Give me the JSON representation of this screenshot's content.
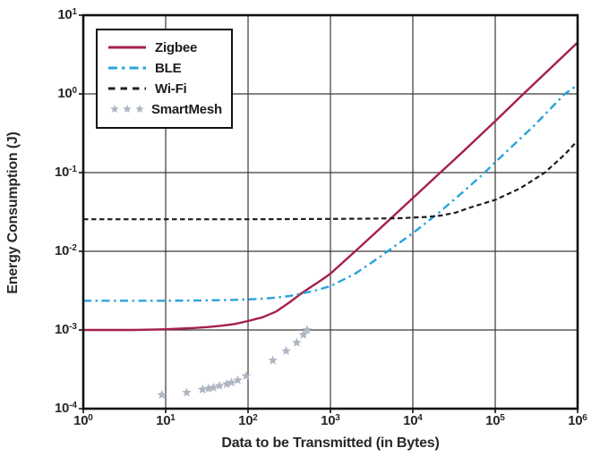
{
  "chart_data": {
    "type": "line",
    "title": "",
    "xlabel": "Data to be Transmitted (in Bytes)",
    "ylabel": "Energy Consumption (J)",
    "x_scale": "log",
    "y_scale": "log",
    "xlim_exponents": [
      0,
      6
    ],
    "ylim_exponents": [
      -4,
      1
    ],
    "x_tick_exponents": [
      0,
      1,
      2,
      3,
      4,
      5,
      6
    ],
    "y_tick_exponents": [
      1,
      0,
      -1,
      -2,
      -3,
      -4
    ],
    "grid": true,
    "legend_position": "top-left",
    "series": [
      {
        "name": "Zigbee",
        "style": "solid",
        "color": "#A62048",
        "width": 2.4,
        "x": [
          1,
          2,
          4,
          7,
          10,
          15,
          22,
          33,
          47,
          68,
          100,
          150,
          220,
          320,
          440,
          600,
          800,
          1000,
          2000,
          4000,
          7000,
          10000,
          20000,
          40000,
          100000,
          220000,
          1000000
        ],
        "y": [
          0.001,
          0.001,
          0.001,
          0.00101,
          0.00102,
          0.00104,
          0.00106,
          0.00109,
          0.00113,
          0.00119,
          0.0013,
          0.00145,
          0.00172,
          0.00225,
          0.0029,
          0.0036,
          0.0044,
          0.0052,
          0.01,
          0.0195,
          0.0335,
          0.0475,
          0.093,
          0.182,
          0.45,
          1.0,
          4.5
        ]
      },
      {
        "name": "BLE",
        "style": "dashdot",
        "color": "#29A3DC",
        "width": 2.4,
        "x": [
          1,
          3,
          10,
          30,
          60,
          100,
          150,
          220,
          320,
          440,
          600,
          1000,
          2000,
          4000,
          7000,
          10000,
          20000,
          40000,
          70000,
          100000,
          300000,
          700000,
          1000000
        ],
        "y": [
          0.00235,
          0.00235,
          0.00235,
          0.00238,
          0.0024,
          0.00245,
          0.0025,
          0.00258,
          0.0027,
          0.0029,
          0.0031,
          0.0036,
          0.0052,
          0.0085,
          0.013,
          0.017,
          0.03,
          0.056,
          0.094,
          0.135,
          0.4,
          1.0,
          1.3
        ]
      },
      {
        "name": "Wi-Fi",
        "style": "dashed",
        "color": "#1E1E1E",
        "width": 2.2,
        "x": [
          1,
          10,
          100,
          1000,
          3000,
          7000,
          10000,
          15000,
          22000,
          33000,
          50000,
          100000,
          200000,
          400000,
          700000,
          1000000
        ],
        "y": [
          0.0255,
          0.0255,
          0.0255,
          0.0258,
          0.026,
          0.0263,
          0.0268,
          0.0273,
          0.0285,
          0.031,
          0.036,
          0.045,
          0.063,
          0.1,
          0.17,
          0.255
        ]
      },
      {
        "name": "SmartMesh",
        "style": "stars",
        "color": "#AEB6C3",
        "width": 0,
        "x": [
          9,
          18,
          28,
          33,
          38,
          45,
          55,
          63,
          75,
          95,
          200,
          290,
          390,
          470,
          520
        ],
        "y": [
          0.00015,
          0.00016,
          0.000175,
          0.00018,
          0.000185,
          0.000195,
          0.000205,
          0.000215,
          0.00023,
          0.00026,
          0.00041,
          0.00054,
          0.00069,
          0.00087,
          0.001
        ]
      }
    ]
  },
  "style": {
    "background": "#FFFFFF",
    "grid_color": "#3A3A3A",
    "frame_color": "#111111",
    "text_color": "#27272A",
    "legend_border_color": "#111111"
  }
}
